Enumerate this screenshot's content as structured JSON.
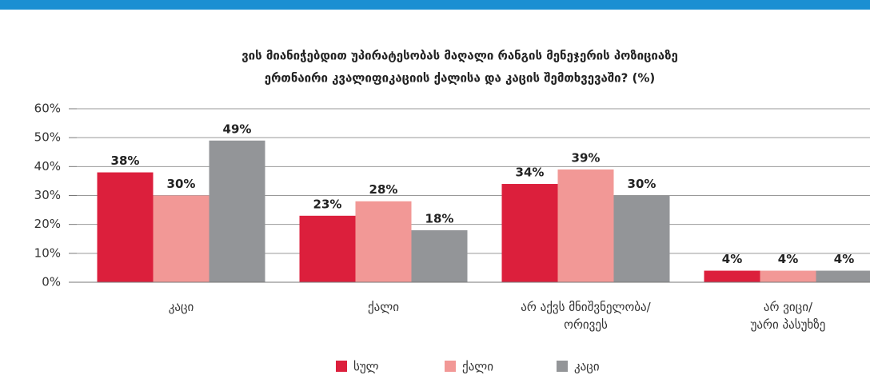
{
  "chart_data": {
    "type": "bar",
    "title": [
      "ვის მიანიჭებდით უპირატესობას მაღალი რანგის მენეჯერის პოზიციაზე",
      "ერთნაირი კვალიფიკაციის ქალისა და კაცის შემთხვევაში? (%)"
    ],
    "categories": [
      "კაცი",
      "ქალი",
      "არ აქვს მნიშვნელობა/\nორივეს",
      "არ ვიცი/\nუარი პასუხზე"
    ],
    "series": [
      {
        "name": "სულ",
        "color": "#dc1f3c",
        "values": [
          38,
          23,
          34,
          4
        ],
        "value_labels": [
          "38%",
          "23%",
          "34%",
          "4%"
        ]
      },
      {
        "name": "ქალი",
        "color": "#f29896",
        "values": [
          30,
          28,
          39,
          4
        ],
        "value_labels": [
          "30%",
          "28%",
          "39%",
          "4%"
        ]
      },
      {
        "name": "კაცი",
        "color": "#939598",
        "values": [
          49,
          18,
          30,
          4
        ],
        "value_labels": [
          "49%",
          "18%",
          "30%",
          "4%"
        ]
      }
    ],
    "ylim": [
      0,
      60
    ],
    "yticks": [
      {
        "value": 0,
        "label": "0%"
      },
      {
        "value": 10,
        "label": "10%"
      },
      {
        "value": 20,
        "label": "20%"
      },
      {
        "value": 30,
        "label": "30%"
      },
      {
        "value": 40,
        "label": "40%"
      },
      {
        "value": 50,
        "label": "50%"
      },
      {
        "value": 60,
        "label": "60%"
      }
    ],
    "grid": true,
    "legend": "bottom"
  }
}
